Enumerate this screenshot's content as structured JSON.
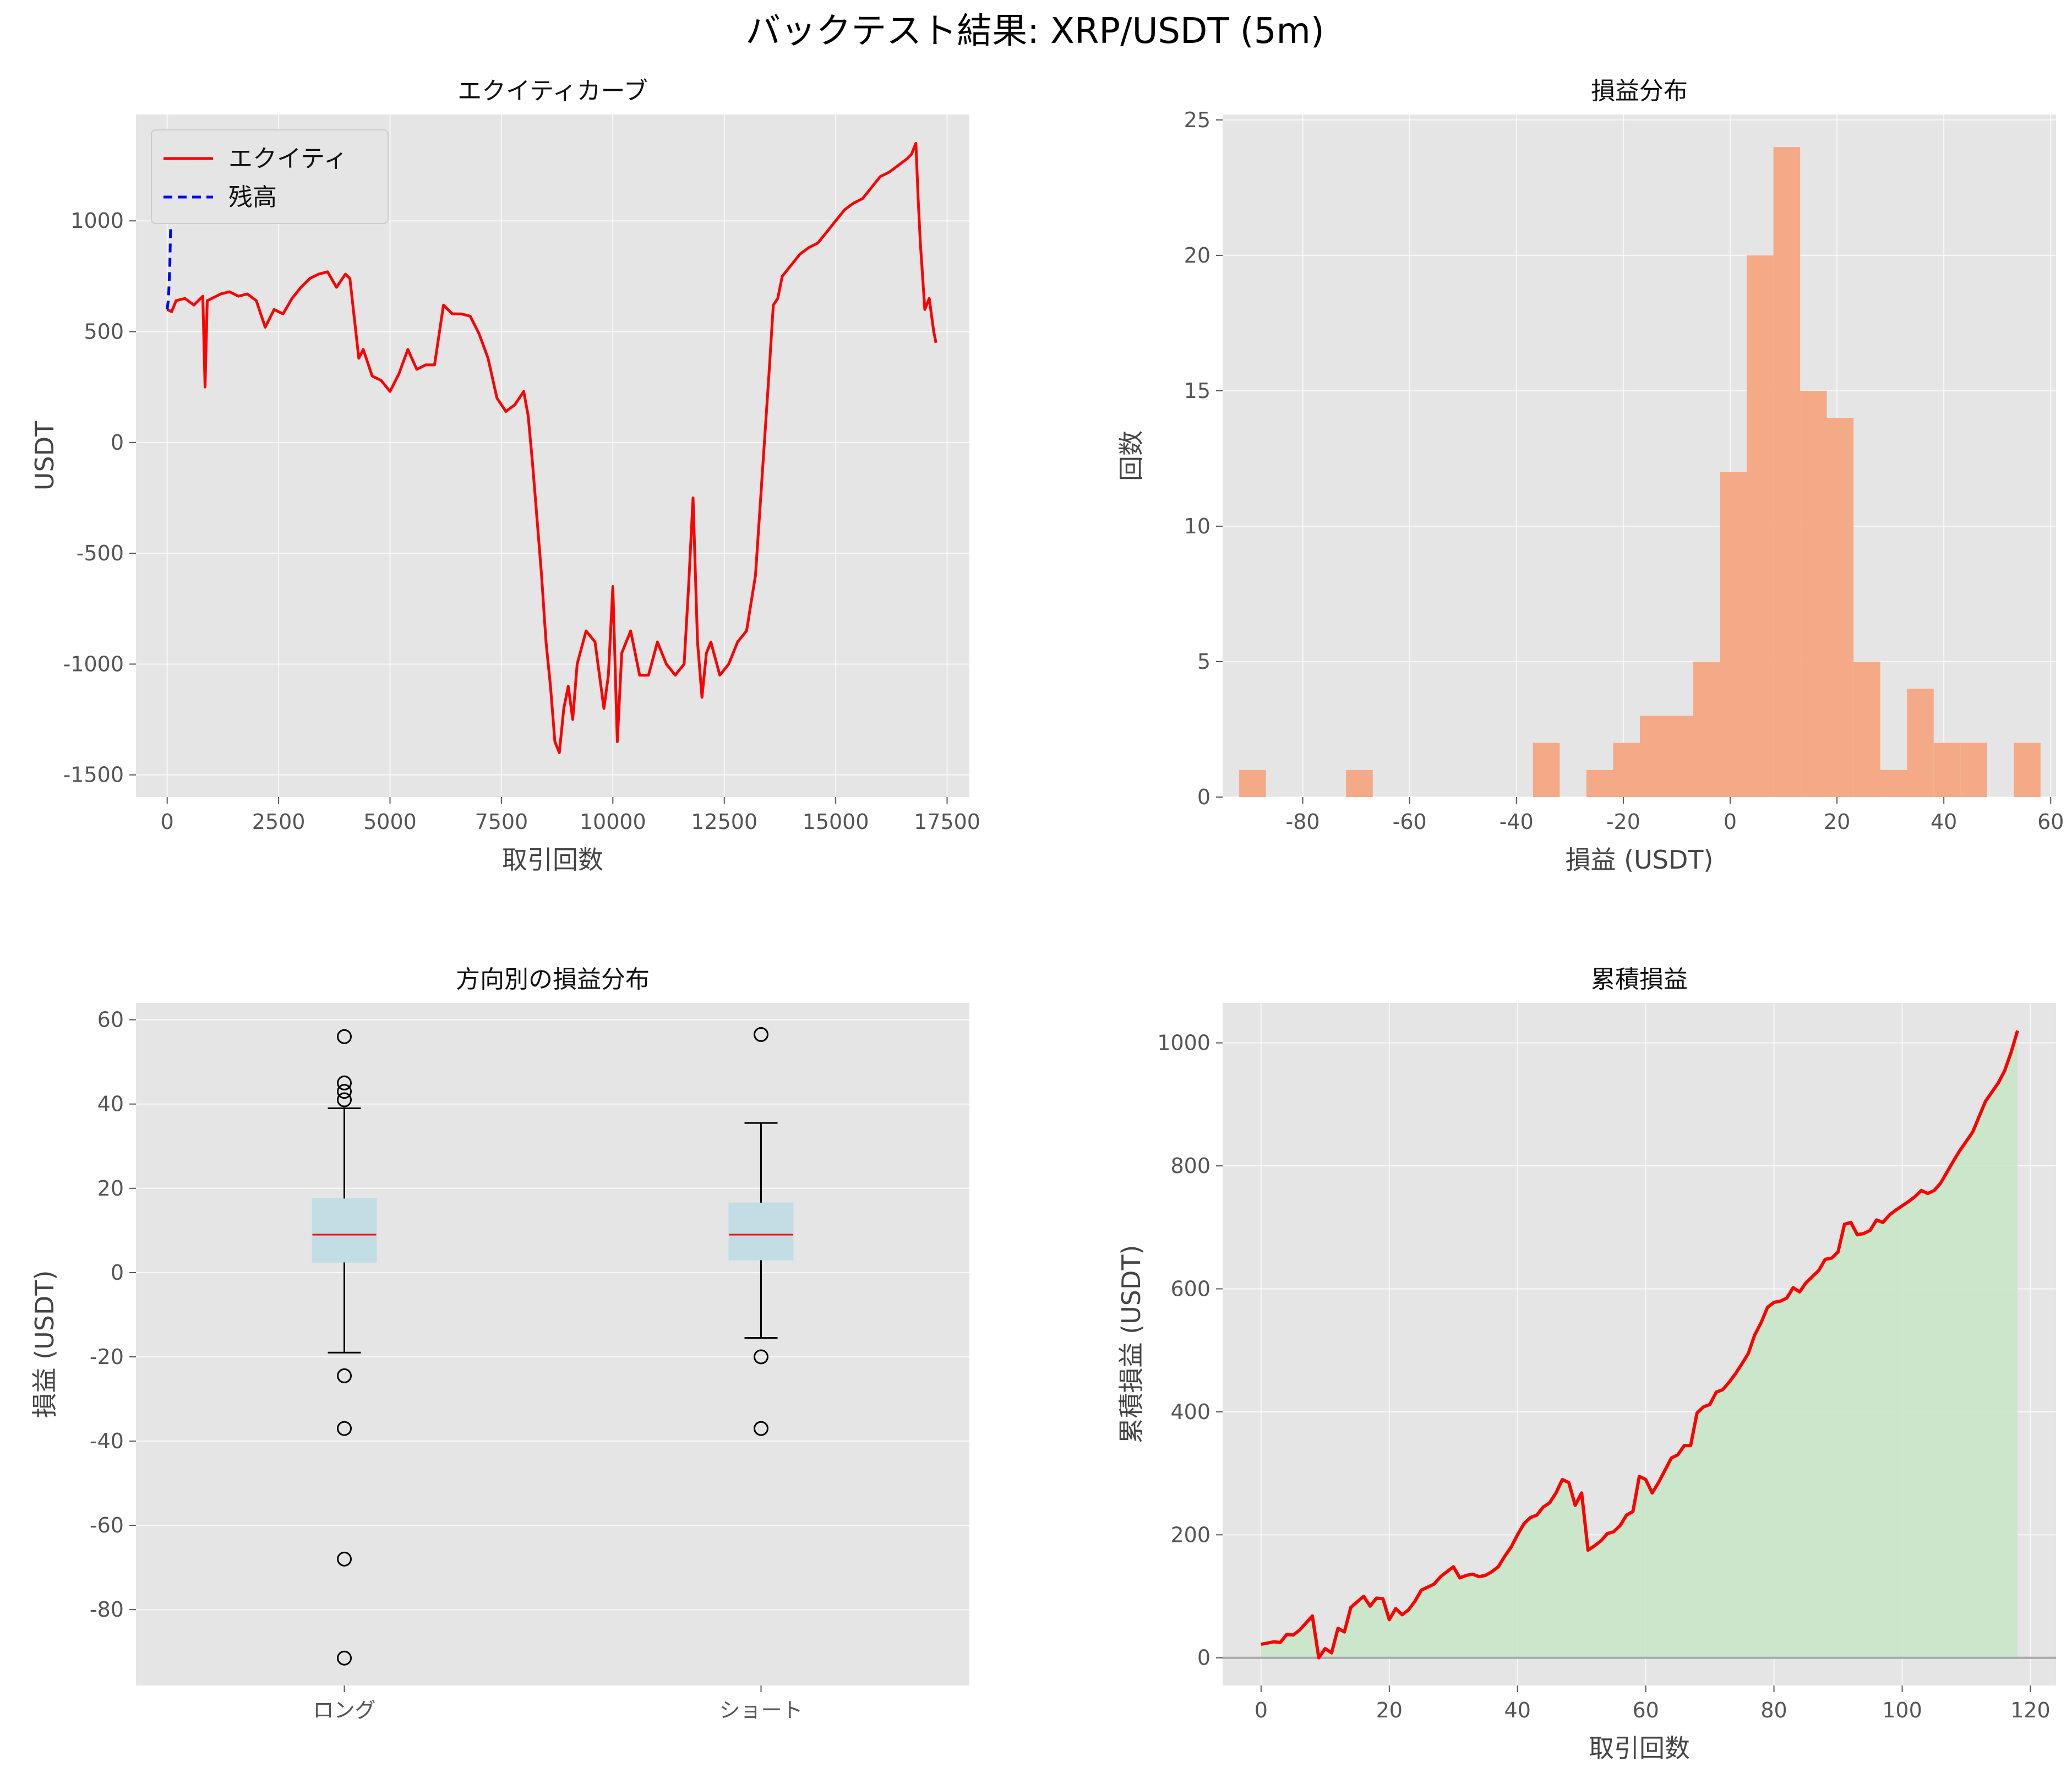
{
  "suptitle": "バックテスト結果: XRP/USDT (5m)",
  "colors": {
    "equity": "#ff0000",
    "balance": "#0000ff",
    "hist": "#f4a582",
    "box_fill": "#add8e6",
    "median": "#ff0000",
    "cum_line": "#ff0000",
    "cum_fill": "#c8e6c8"
  },
  "chart_data": [
    {
      "type": "line",
      "title": "エクイティカーブ",
      "xlabel": "取引回数",
      "ylabel": "USDT",
      "xlim": [
        -700,
        18000
      ],
      "ylim": [
        -1600,
        1480
      ],
      "xticks": [
        0,
        2500,
        5000,
        7500,
        10000,
        12500,
        15000,
        17500
      ],
      "xtick_labels": [
        "0",
        "2500",
        "5000",
        "7500",
        "10000",
        "12500",
        "15000",
        "17500"
      ],
      "yticks": [
        -1500,
        -1000,
        -500,
        0,
        500,
        1000
      ],
      "ytick_labels": [
        "-1500",
        "-1000",
        "-500",
        "0",
        "500",
        "1000"
      ],
      "legend": [
        "エクイティ",
        "残高"
      ],
      "series": [
        {
          "name": "エクイティ",
          "x": [
            0,
            100,
            200,
            400,
            600,
            800,
            850,
            900,
            1000,
            1200,
            1400,
            1600,
            1800,
            2000,
            2200,
            2400,
            2600,
            2800,
            3000,
            3200,
            3400,
            3600,
            3800,
            4000,
            4100,
            4300,
            4400,
            4600,
            4800,
            5000,
            5200,
            5400,
            5600,
            5800,
            6000,
            6200,
            6400,
            6600,
            6800,
            7000,
            7200,
            7400,
            7600,
            7800,
            8000,
            8100,
            8200,
            8300,
            8400,
            8500,
            8600,
            8700,
            8800,
            8900,
            9000,
            9100,
            9200,
            9400,
            9600,
            9800,
            9900,
            10000,
            10100,
            10200,
            10400,
            10600,
            10800,
            11000,
            11200,
            11400,
            11600,
            11700,
            11800,
            11900,
            12000,
            12100,
            12200,
            12400,
            12600,
            12800,
            13000,
            13200,
            13300,
            13400,
            13500,
            13600,
            13700,
            13800,
            14000,
            14200,
            14400,
            14600,
            14800,
            15000,
            15200,
            15400,
            15600,
            15800,
            16000,
            16200,
            16400,
            16600,
            16700,
            16800,
            16850,
            16900,
            16950,
            17000,
            17100,
            17200,
            17250
          ],
          "y": [
            600,
            590,
            640,
            650,
            620,
            660,
            250,
            640,
            650,
            670,
            680,
            660,
            670,
            640,
            520,
            600,
            580,
            650,
            700,
            740,
            760,
            770,
            700,
            760,
            740,
            380,
            420,
            300,
            280,
            230,
            310,
            420,
            330,
            350,
            350,
            620,
            580,
            580,
            570,
            490,
            380,
            200,
            140,
            170,
            230,
            120,
            -100,
            -350,
            -600,
            -900,
            -1100,
            -1350,
            -1400,
            -1200,
            -1100,
            -1250,
            -1000,
            -850,
            -900,
            -1200,
            -1050,
            -650,
            -1350,
            -950,
            -850,
            -1050,
            -1050,
            -900,
            -1000,
            -1050,
            -1000,
            -650,
            -250,
            -900,
            -1150,
            -950,
            -900,
            -1050,
            -1000,
            -900,
            -850,
            -600,
            -300,
            0,
            300,
            620,
            650,
            750,
            800,
            850,
            880,
            900,
            950,
            1000,
            1050,
            1080,
            1100,
            1150,
            1200,
            1220,
            1250,
            1280,
            1300,
            1350,
            1100,
            900,
            750,
            600,
            650,
            500,
            450
          ]
        },
        {
          "name": "残高",
          "x": [
            0,
            30,
            60,
            90,
            110
          ],
          "y": [
            600,
            650,
            800,
            1100,
            1340
          ]
        }
      ]
    },
    {
      "type": "bar",
      "title": "損益分布",
      "xlabel": "損益 (USDT)",
      "ylabel": "回数",
      "xlim": [
        -95,
        61
      ],
      "ylim": [
        0,
        25.2
      ],
      "xticks": [
        -80,
        -60,
        -40,
        -20,
        0,
        20,
        40,
        60
      ],
      "xtick_labels": [
        "-80",
        "-60",
        "-40",
        "-20",
        "0",
        "20",
        "40",
        "60"
      ],
      "yticks": [
        0,
        5,
        10,
        15,
        20,
        25
      ],
      "ytick_labels": [
        "0",
        "5",
        "10",
        "15",
        "20",
        "25"
      ],
      "bin_edges": [
        -91.9,
        -86.9,
        -81.9,
        -76.9,
        -71.9,
        -66.9,
        -61.9,
        -56.9,
        -51.9,
        -46.9,
        -41.9,
        -36.9,
        -31.9,
        -26.9,
        -21.9,
        -16.9,
        -11.9,
        -6.9,
        -1.9,
        3.1,
        8.1,
        13.1,
        18.1,
        23.1,
        28.1,
        33.1,
        38.1,
        43.1,
        48.1,
        53.1,
        58.1
      ],
      "counts": [
        1,
        0,
        0,
        0,
        1,
        0,
        0,
        0,
        0,
        0,
        0,
        2,
        0,
        1,
        2,
        3,
        3,
        5,
        12,
        20,
        24,
        15,
        14,
        5,
        1,
        4,
        2,
        2,
        0,
        2
      ]
    },
    {
      "type": "box",
      "title": "方向別の損益分布",
      "xlabel": "",
      "ylabel": "損益 (USDT)",
      "ylim": [
        -98,
        64
      ],
      "yticks": [
        -80,
        -60,
        -40,
        -20,
        0,
        20,
        40,
        60
      ],
      "ytick_labels": [
        "-80",
        "-60",
        "-40",
        "-20",
        "0",
        "20",
        "40",
        "60"
      ],
      "categories": [
        "ロング",
        "ショート"
      ],
      "boxes": [
        {
          "whisker_low": -19,
          "q1": 2.5,
          "median": 9,
          "q3": 17.5,
          "whisker_high": 39,
          "fliers": [
            56,
            45,
            43,
            41,
            -24.5,
            -37,
            -68,
            -91.5
          ]
        },
        {
          "whisker_low": -15.5,
          "q1": 3,
          "median": 9,
          "q3": 16.5,
          "whisker_high": 35.5,
          "fliers": [
            56.5,
            -20,
            -37
          ]
        }
      ]
    },
    {
      "type": "area",
      "title": "累積損益",
      "xlabel": "取引回数",
      "ylabel": "累積損益 (USDT)",
      "xlim": [
        -6,
        124
      ],
      "ylim": [
        -45,
        1065
      ],
      "xticks": [
        0,
        20,
        40,
        60,
        80,
        100,
        120
      ],
      "xtick_labels": [
        "0",
        "20",
        "40",
        "60",
        "80",
        "100",
        "120"
      ],
      "yticks": [
        0,
        200,
        400,
        600,
        800,
        1000
      ],
      "ytick_labels": [
        "0",
        "200",
        "400",
        "600",
        "800",
        "1000"
      ],
      "x": [
        0,
        2,
        3,
        4,
        5,
        6,
        8,
        9,
        10,
        11,
        12,
        13,
        14,
        16,
        17,
        18,
        19,
        20,
        21,
        22,
        23,
        24,
        25,
        26,
        27,
        28,
        29,
        30,
        31,
        32,
        33,
        34,
        35,
        36,
        37,
        38,
        39,
        40,
        41,
        42,
        43,
        44,
        45,
        46,
        47,
        48,
        49,
        50,
        51,
        52,
        53,
        54,
        55,
        56,
        57,
        58,
        59,
        60,
        61,
        62,
        63,
        64,
        65,
        66,
        67,
        68,
        69,
        70,
        71,
        72,
        73,
        74,
        75,
        76,
        77,
        78,
        79,
        80,
        81,
        82,
        83,
        84,
        85,
        86,
        87,
        88,
        89,
        90,
        91,
        92,
        93,
        94,
        95,
        96,
        97,
        98,
        99,
        100,
        101,
        102,
        103,
        104,
        105,
        106,
        107,
        108,
        109,
        110,
        111,
        112,
        113,
        114,
        115,
        116,
        117,
        118
      ],
      "y": [
        22,
        26,
        25,
        38,
        37,
        45,
        68,
        0,
        15,
        8,
        48,
        42,
        82,
        100,
        84,
        97,
        96,
        62,
        80,
        70,
        78,
        92,
        110,
        115,
        120,
        132,
        140,
        148,
        130,
        134,
        136,
        132,
        134,
        140,
        148,
        165,
        180,
        200,
        218,
        228,
        232,
        245,
        252,
        268,
        290,
        285,
        248,
        268,
        175,
        182,
        190,
        202,
        205,
        215,
        232,
        238,
        295,
        290,
        268,
        285,
        305,
        325,
        330,
        345,
        345,
        398,
        408,
        412,
        432,
        436,
        448,
        462,
        478,
        495,
        525,
        545,
        570,
        578,
        580,
        585,
        602,
        595,
        610,
        620,
        630,
        648,
        650,
        660,
        705,
        708,
        688,
        690,
        695,
        712,
        708,
        720,
        728,
        735,
        742,
        750,
        760,
        755,
        760,
        772,
        790,
        808,
        825,
        840,
        855,
        880,
        905,
        920,
        935,
        955,
        985,
        1020
      ]
    }
  ]
}
